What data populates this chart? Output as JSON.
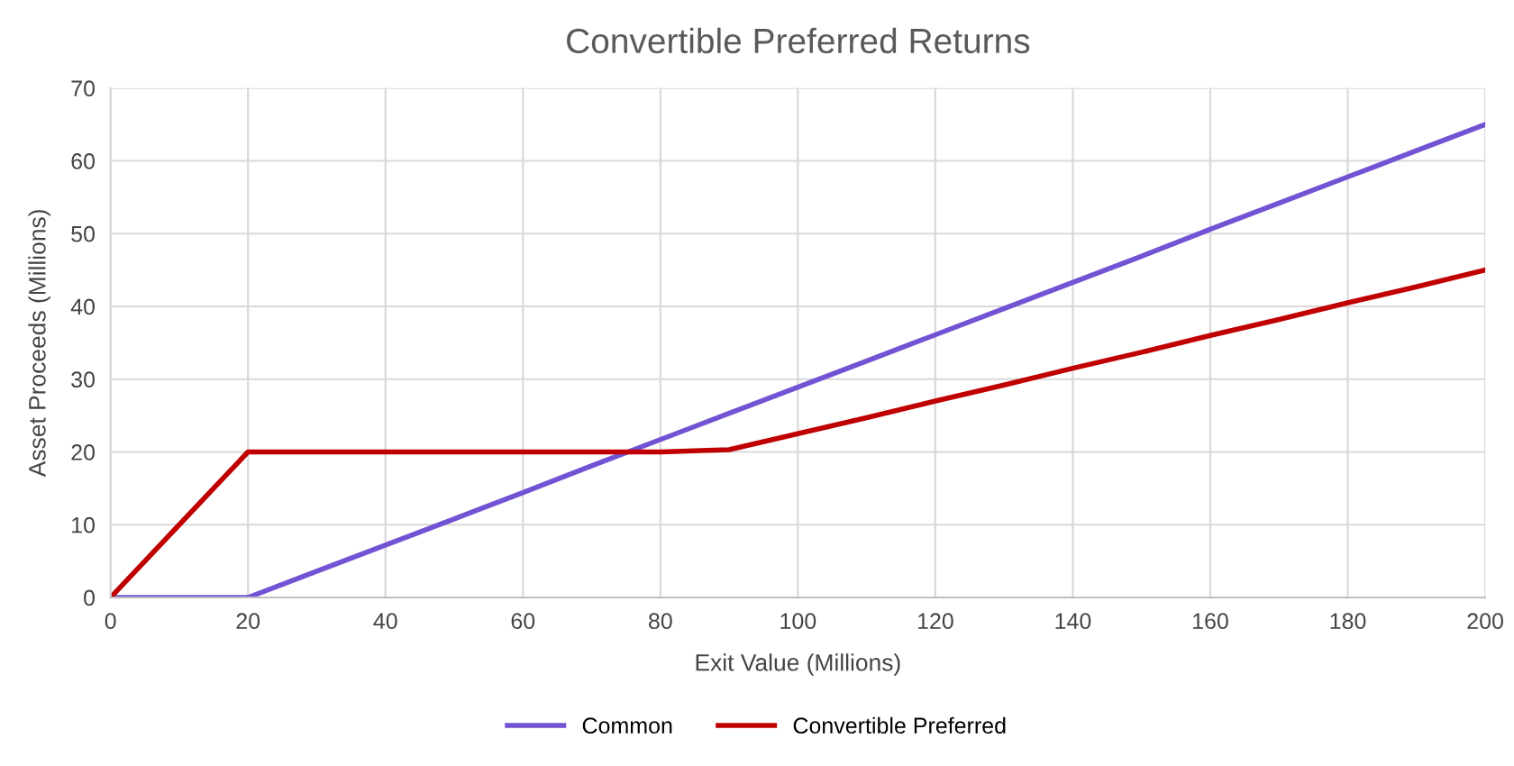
{
  "chart_data": {
    "type": "line",
    "title": "Convertible Preferred Returns",
    "xlabel": "Exit Value (Millions)",
    "ylabel": "Asset Proceeds (Millions)",
    "x": [
      0,
      10,
      20,
      30,
      40,
      50,
      60,
      70,
      80,
      90,
      100,
      110,
      120,
      130,
      140,
      150,
      160,
      170,
      180,
      190,
      200
    ],
    "series": [
      {
        "name": "Common",
        "color": "#7153d4",
        "values": [
          0,
          0,
          0,
          3.6,
          7.2,
          10.8,
          14.4,
          18.1,
          21.7,
          25.3,
          28.9,
          32.5,
          36.1,
          39.7,
          43.3,
          46.9,
          50.6,
          54.2,
          57.8,
          61.4,
          65
        ]
      },
      {
        "name": "Convertible Preferred",
        "color": "#c00000",
        "values": [
          0,
          10,
          20,
          20,
          20,
          20,
          20,
          20,
          20,
          20.3,
          22.5,
          24.7,
          27,
          29.2,
          31.5,
          33.7,
          36,
          38.2,
          40.5,
          42.7,
          45
        ]
      }
    ],
    "xlim": [
      0,
      200
    ],
    "xticks": [
      0,
      20,
      40,
      60,
      80,
      100,
      120,
      140,
      160,
      180,
      200
    ],
    "ylim": [
      0,
      70
    ],
    "yticks": [
      0,
      10,
      20,
      30,
      40,
      50,
      60,
      70
    ],
    "grid": true,
    "legend": "bottom",
    "marker": "none",
    "line_style": "solid"
  }
}
